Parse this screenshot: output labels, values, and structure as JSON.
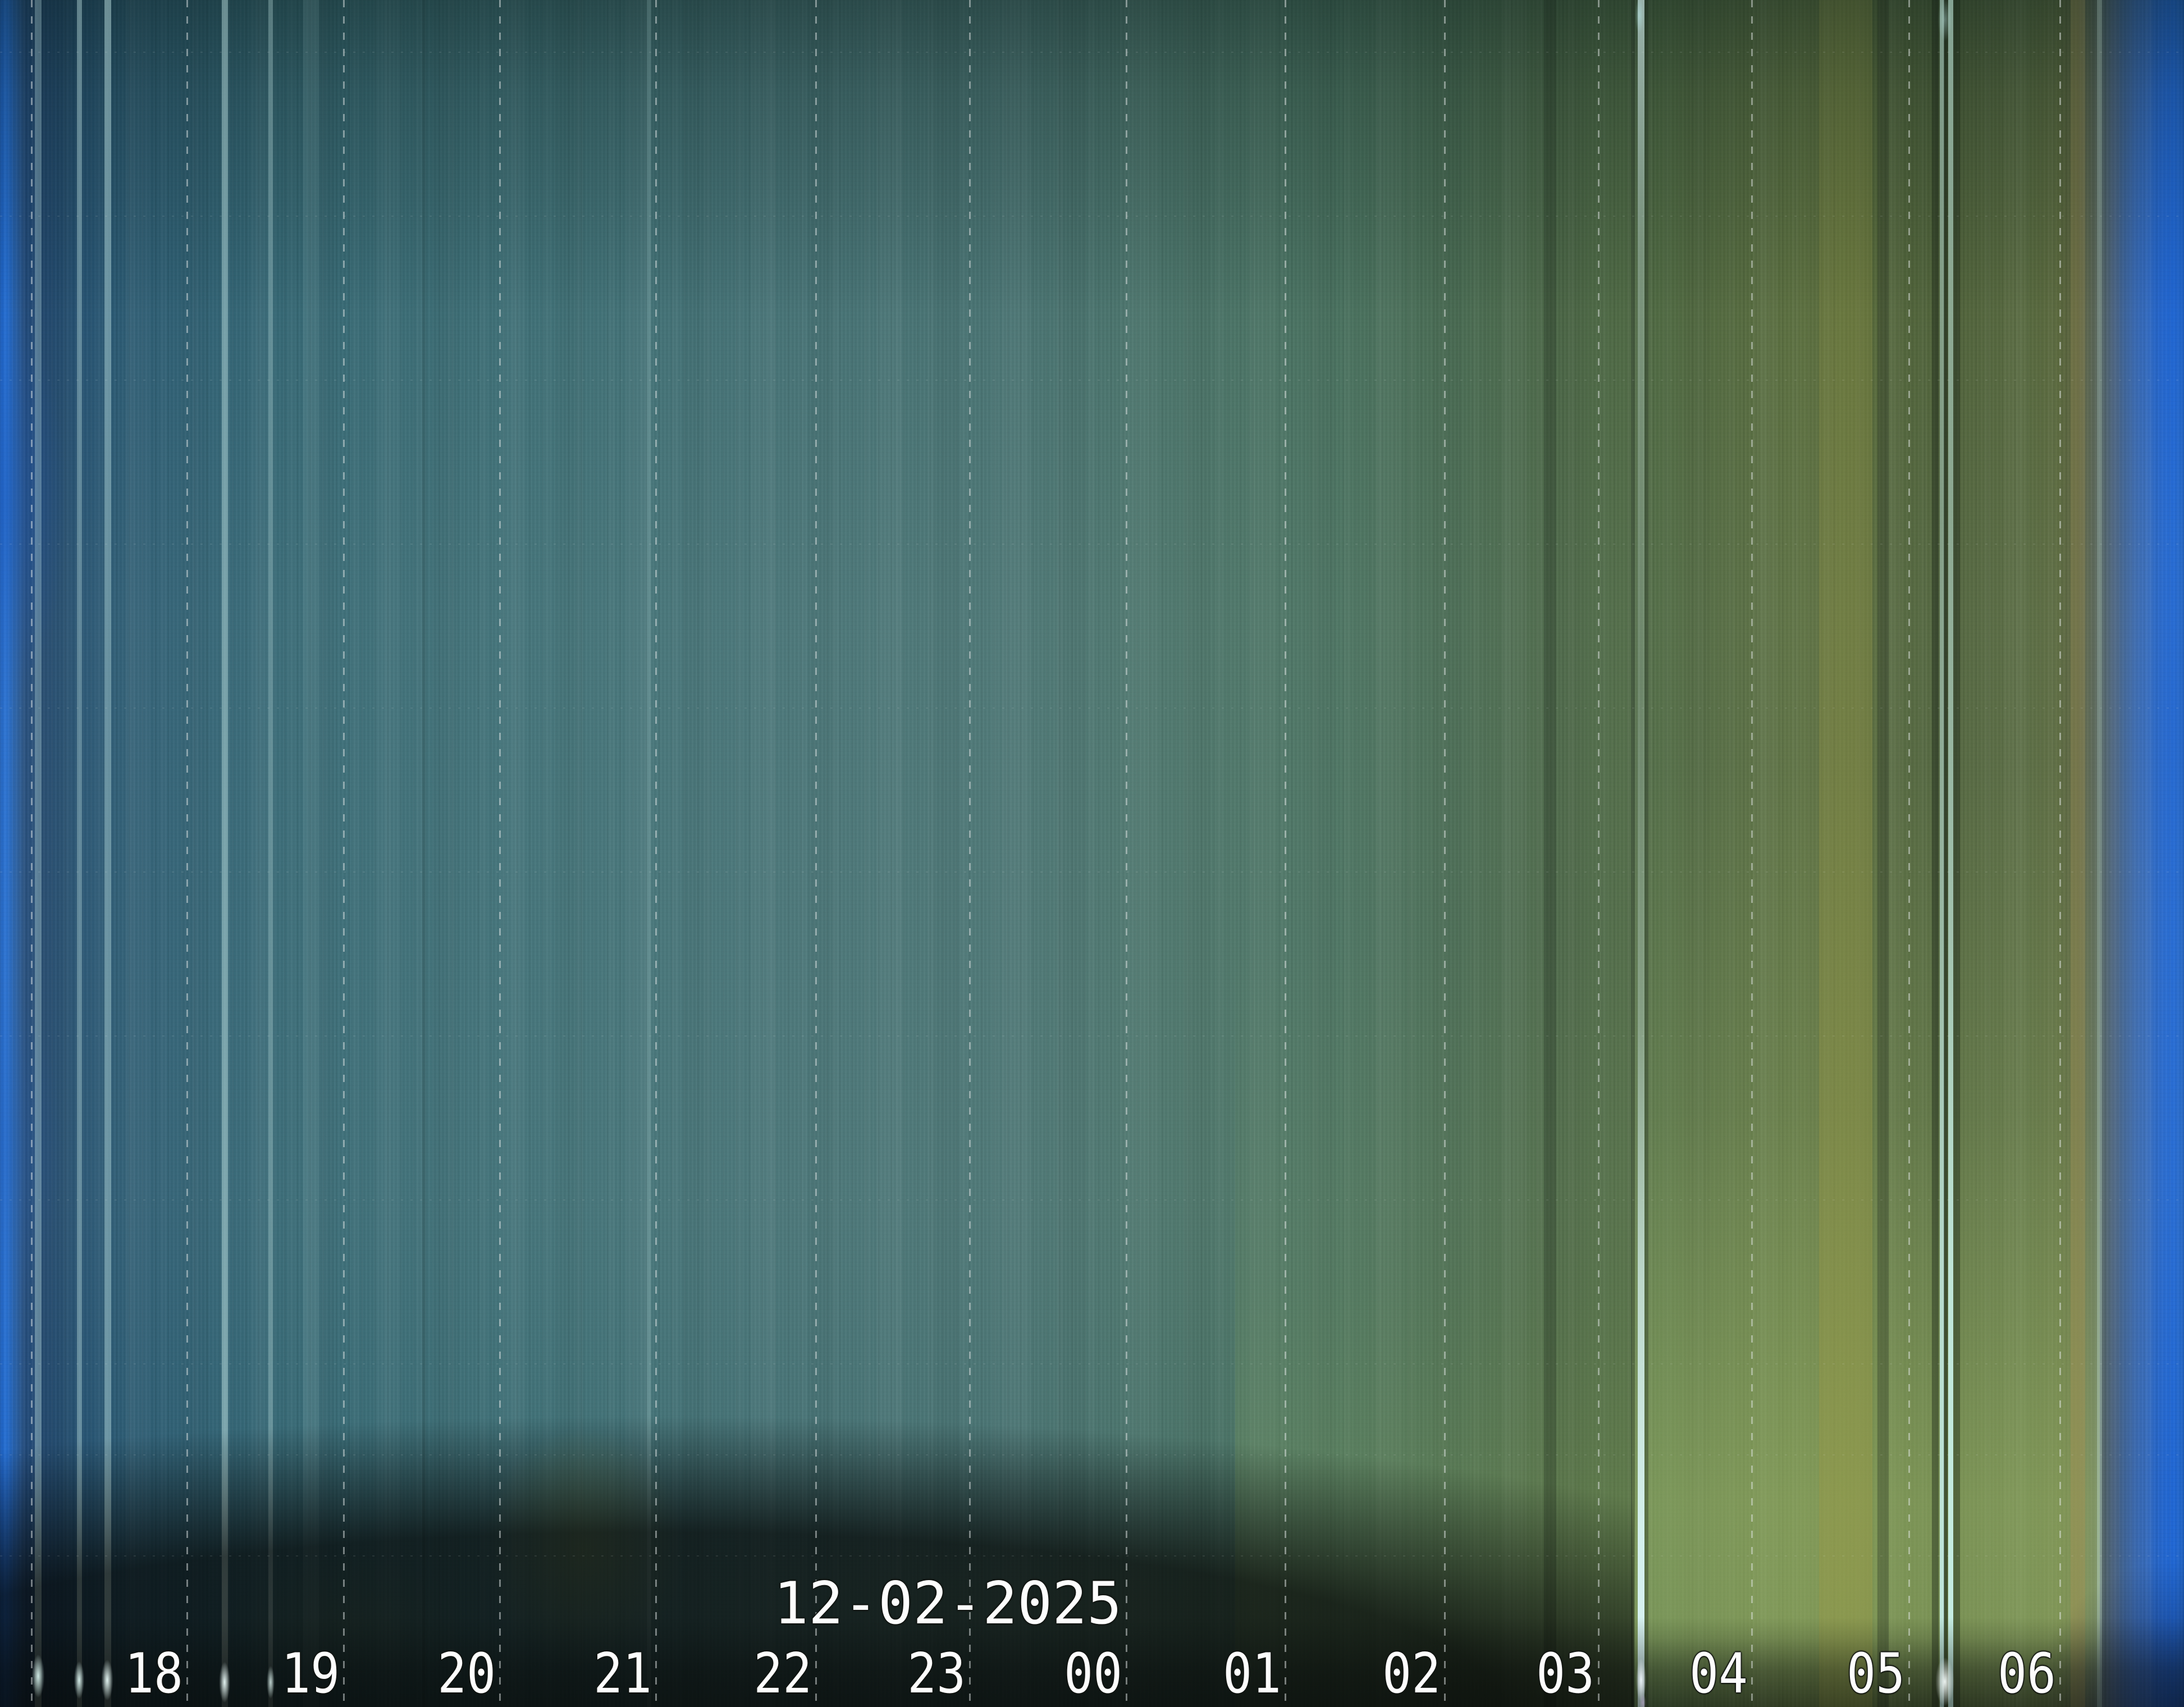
{
  "chart_data": {
    "type": "heatmap",
    "chart_kind": "keogram-allsky-time-strip",
    "title": "12-02-2025",
    "date_label": "12-02-2025",
    "x_unit": "hour of night",
    "x_categories": [
      "18",
      "19",
      "20",
      "21",
      "22",
      "23",
      "00",
      "01",
      "02",
      "03",
      "04",
      "05",
      "06"
    ],
    "x_ticks": [
      {
        "label": "18",
        "x": 332
      },
      {
        "label": "19",
        "x": 611
      },
      {
        "label": "20",
        "x": 889
      },
      {
        "label": "21",
        "x": 1167
      },
      {
        "label": "22",
        "x": 1452
      },
      {
        "label": "23",
        "x": 1726
      },
      {
        "label": "00",
        "x": 2005
      },
      {
        "label": "01",
        "x": 2288
      },
      {
        "label": "02",
        "x": 2572
      },
      {
        "label": "03",
        "x": 2846
      },
      {
        "label": "04",
        "x": 3119
      },
      {
        "label": "05",
        "x": 3399
      },
      {
        "label": "06",
        "x": 3668
      }
    ],
    "extra_gridlines_x": [
      55
    ],
    "elevation_gridlines_y": [
      92,
      384,
      676,
      968,
      1260,
      1552,
      1844,
      2136,
      2428,
      2590,
      2770
    ],
    "column_color_stops": [
      {
        "x": 0,
        "color": "#0d53b8"
      },
      {
        "x": 10,
        "color": "#1b67d2"
      },
      {
        "x": 24,
        "color": "#1e5cad"
      },
      {
        "x": 42,
        "color": "#20497b"
      },
      {
        "x": 75,
        "color": "#20456a"
      },
      {
        "x": 135,
        "color": "#245071"
      },
      {
        "x": 230,
        "color": "#2b5a71"
      },
      {
        "x": 360,
        "color": "#306173"
      },
      {
        "x": 520,
        "color": "#356773"
      },
      {
        "x": 720,
        "color": "#3a6b74"
      },
      {
        "x": 1000,
        "color": "#3f6f75"
      },
      {
        "x": 1400,
        "color": "#457174"
      },
      {
        "x": 1800,
        "color": "#487271"
      },
      {
        "x": 2120,
        "color": "#497267"
      },
      {
        "x": 2380,
        "color": "#48705e"
      },
      {
        "x": 2600,
        "color": "#486a51"
      },
      {
        "x": 2760,
        "color": "#4a6646"
      },
      {
        "x": 2950,
        "color": "#4e6841"
      },
      {
        "x": 3100,
        "color": "#54693e"
      },
      {
        "x": 3245,
        "color": "#5d703f"
      },
      {
        "x": 3310,
        "color": "#5a6c3a"
      },
      {
        "x": 3365,
        "color": "#51643a"
      },
      {
        "x": 3455,
        "color": "#4e6139"
      },
      {
        "x": 3530,
        "color": "#52643c"
      },
      {
        "x": 3610,
        "color": "#55673d"
      },
      {
        "x": 3668,
        "color": "#59673c"
      },
      {
        "x": 3700,
        "color": "#5d6440"
      },
      {
        "x": 3733,
        "color": "#566357"
      },
      {
        "x": 3765,
        "color": "#47607e"
      },
      {
        "x": 3800,
        "color": "#3563a8"
      },
      {
        "x": 3842,
        "color": "#2564c8"
      },
      {
        "x": 3870,
        "color": "#1f66d6"
      },
      {
        "x": 3890,
        "color": "#1a5dc0"
      }
    ],
    "streaks": [
      {
        "x": 62,
        "w": 12,
        "rgb": "205,240,238",
        "stops": [
          [
            0,
            0.28
          ],
          [
            40,
            0.28
          ],
          [
            85,
            0.35
          ],
          [
            93,
            0.7
          ],
          [
            100,
            0.85
          ]
        ]
      },
      {
        "x": 137,
        "w": 9,
        "rgb": "205,240,238",
        "stops": [
          [
            0,
            0.4
          ],
          [
            40,
            0.3
          ],
          [
            85,
            0.38
          ],
          [
            93,
            0.75
          ],
          [
            100,
            0.9
          ]
        ]
      },
      {
        "x": 186,
        "w": 12,
        "rgb": "205,240,238",
        "stops": [
          [
            0,
            0.45
          ],
          [
            40,
            0.34
          ],
          [
            85,
            0.4
          ],
          [
            93,
            0.8
          ],
          [
            100,
            0.92
          ]
        ]
      },
      {
        "x": 395,
        "w": 11,
        "rgb": "205,240,238",
        "stops": [
          [
            0,
            0.42
          ],
          [
            40,
            0.4
          ],
          [
            85,
            0.45
          ],
          [
            93,
            0.85
          ],
          [
            100,
            0.95
          ]
        ]
      },
      {
        "x": 478,
        "w": 8,
        "rgb": "205,240,238",
        "stops": [
          [
            0,
            0.3
          ],
          [
            40,
            0.24
          ],
          [
            85,
            0.3
          ],
          [
            93,
            0.6
          ],
          [
            100,
            0.8
          ]
        ]
      },
      {
        "x": 540,
        "w": 28,
        "rgb": "205,240,238",
        "stops": [
          [
            0,
            0.1
          ],
          [
            50,
            0.08
          ],
          [
            100,
            0.14
          ]
        ]
      },
      {
        "x": 1152,
        "w": 8,
        "rgb": "205,240,238",
        "stops": [
          [
            0,
            0.16
          ],
          [
            50,
            0.13
          ],
          [
            100,
            0.22
          ]
        ]
      },
      {
        "x": 2917,
        "w": 12,
        "rgb": "220,248,250",
        "stops": [
          [
            0,
            0.6
          ],
          [
            15,
            0.3
          ],
          [
            40,
            0.16
          ],
          [
            60,
            0.3
          ],
          [
            75,
            0.7
          ],
          [
            90,
            0.92
          ],
          [
            100,
            0.95
          ]
        ]
      },
      {
        "x": 3455,
        "w": 8,
        "rgb": "195,235,228",
        "stops": [
          [
            0,
            0.5
          ],
          [
            30,
            0.42
          ],
          [
            55,
            0.6
          ],
          [
            75,
            0.85
          ],
          [
            95,
            0.95
          ],
          [
            100,
            0.95
          ]
        ]
      },
      {
        "x": 3470,
        "w": 9,
        "rgb": "200,240,232",
        "stops": [
          [
            0,
            0.55
          ],
          [
            30,
            0.48
          ],
          [
            55,
            0.65
          ],
          [
            75,
            0.9
          ],
          [
            95,
            0.97
          ],
          [
            100,
            0.97
          ]
        ]
      },
      {
        "x": 3735,
        "w": 9,
        "rgb": "195,225,210",
        "stops": [
          [
            0,
            0.25
          ],
          [
            50,
            0.25
          ],
          [
            85,
            0.4
          ],
          [
            100,
            0.45
          ]
        ]
      },
      {
        "x": 3240,
        "w": 95,
        "rgb": "152,150,66",
        "stops": [
          [
            0,
            0.12
          ],
          [
            40,
            0.28
          ],
          [
            75,
            0.38
          ],
          [
            92,
            0.42
          ],
          [
            100,
            0.3
          ]
        ]
      },
      {
        "x": 3688,
        "w": 26,
        "rgb": "158,143,82",
        "stops": [
          [
            0,
            0.2
          ],
          [
            50,
            0.32
          ],
          [
            85,
            0.48
          ],
          [
            100,
            0.45
          ]
        ]
      },
      {
        "x": 752,
        "w": 6,
        "rgb": "8,16,12",
        "stops": [
          [
            0,
            0.1
          ],
          [
            100,
            0.14
          ]
        ]
      },
      {
        "x": 2750,
        "w": 22,
        "rgb": "8,16,12",
        "stops": [
          [
            0,
            0.2
          ],
          [
            100,
            0.24
          ]
        ]
      },
      {
        "x": 2905,
        "w": 7,
        "rgb": "8,16,12",
        "stops": [
          [
            0,
            0.25
          ],
          [
            100,
            0.3
          ]
        ]
      },
      {
        "x": 2929,
        "w": 7,
        "rgb": "8,16,12",
        "stops": [
          [
            0,
            0.25
          ],
          [
            100,
            0.3
          ]
        ]
      },
      {
        "x": 3344,
        "w": 20,
        "rgb": "8,16,12",
        "stops": [
          [
            0,
            0.22
          ],
          [
            100,
            0.28
          ]
        ]
      },
      {
        "x": 3441,
        "w": 12,
        "rgb": "8,16,12",
        "stops": [
          [
            0,
            0.3
          ],
          [
            100,
            0.36
          ]
        ]
      },
      {
        "x": 3462,
        "w": 7,
        "rgb": "8,16,12",
        "stops": [
          [
            0,
            0.4
          ],
          [
            100,
            0.5
          ]
        ]
      },
      {
        "x": 3479,
        "w": 12,
        "rgb": "8,16,12",
        "stops": [
          [
            0,
            0.3
          ],
          [
            100,
            0.36
          ]
        ]
      }
    ],
    "glows": [
      {
        "cx": 1040,
        "cy": 2760,
        "rx": 250,
        "ry": 300,
        "rgb": "138,158,92",
        "a": 0.48
      },
      {
        "cx": 620,
        "cy": 2890,
        "rx": 300,
        "ry": 170,
        "rgb": "120,138,80",
        "a": 0.2
      },
      {
        "cx": 1900,
        "cy": 2870,
        "rx": 1150,
        "ry": 220,
        "rgb": "108,130,72",
        "a": 0.16
      }
    ],
    "horizon_blobs": [
      {
        "cx": 68,
        "cy": 2985,
        "rx": 16,
        "ry": 55,
        "rgb": "225,255,250",
        "a": 0.9
      },
      {
        "cx": 141,
        "cy": 2992,
        "rx": 13,
        "ry": 48,
        "rgb": "228,255,251",
        "a": 0.92
      },
      {
        "cx": 191,
        "cy": 2992,
        "rx": 15,
        "ry": 52,
        "rgb": "235,255,252",
        "a": 0.95
      },
      {
        "cx": 400,
        "cy": 2996,
        "rx": 14,
        "ry": 52,
        "rgb": "238,255,253",
        "a": 0.95
      },
      {
        "cx": 482,
        "cy": 2996,
        "rx": 10,
        "ry": 42,
        "rgb": "228,252,248",
        "a": 0.8
      },
      {
        "cx": 2923,
        "cy": 2992,
        "rx": 13,
        "ry": 55,
        "rgb": "242,250,255",
        "a": 0.95
      },
      {
        "cx": 2926,
        "cy": 3032,
        "rx": 9,
        "ry": 22,
        "rgb": "208,175,225",
        "a": 0.45
      },
      {
        "cx": 3464,
        "cy": 2995,
        "rx": 24,
        "ry": 62,
        "rgb": "248,255,253",
        "a": 0.95
      },
      {
        "cx": 3464,
        "cy": 35,
        "rx": 18,
        "ry": 55,
        "rgb": "195,238,234",
        "a": 0.4
      },
      {
        "cx": 2920,
        "cy": 28,
        "rx": 11,
        "ry": 45,
        "rgb": "185,238,238",
        "a": 0.45
      }
    ],
    "colors": {
      "twilight_blue_edge": "#1b67d2",
      "night_teal": "#457174",
      "dawn_green": "#7c9a64",
      "yellow_column": "#5d703f",
      "horizon_black": "#070b08",
      "gridline": "#e8ecec",
      "label_text": "#fdfdfd"
    },
    "legend": "none",
    "grid": "dashed hour gridlines (vertical), faint dotted elevation lines (horizontal)"
  }
}
